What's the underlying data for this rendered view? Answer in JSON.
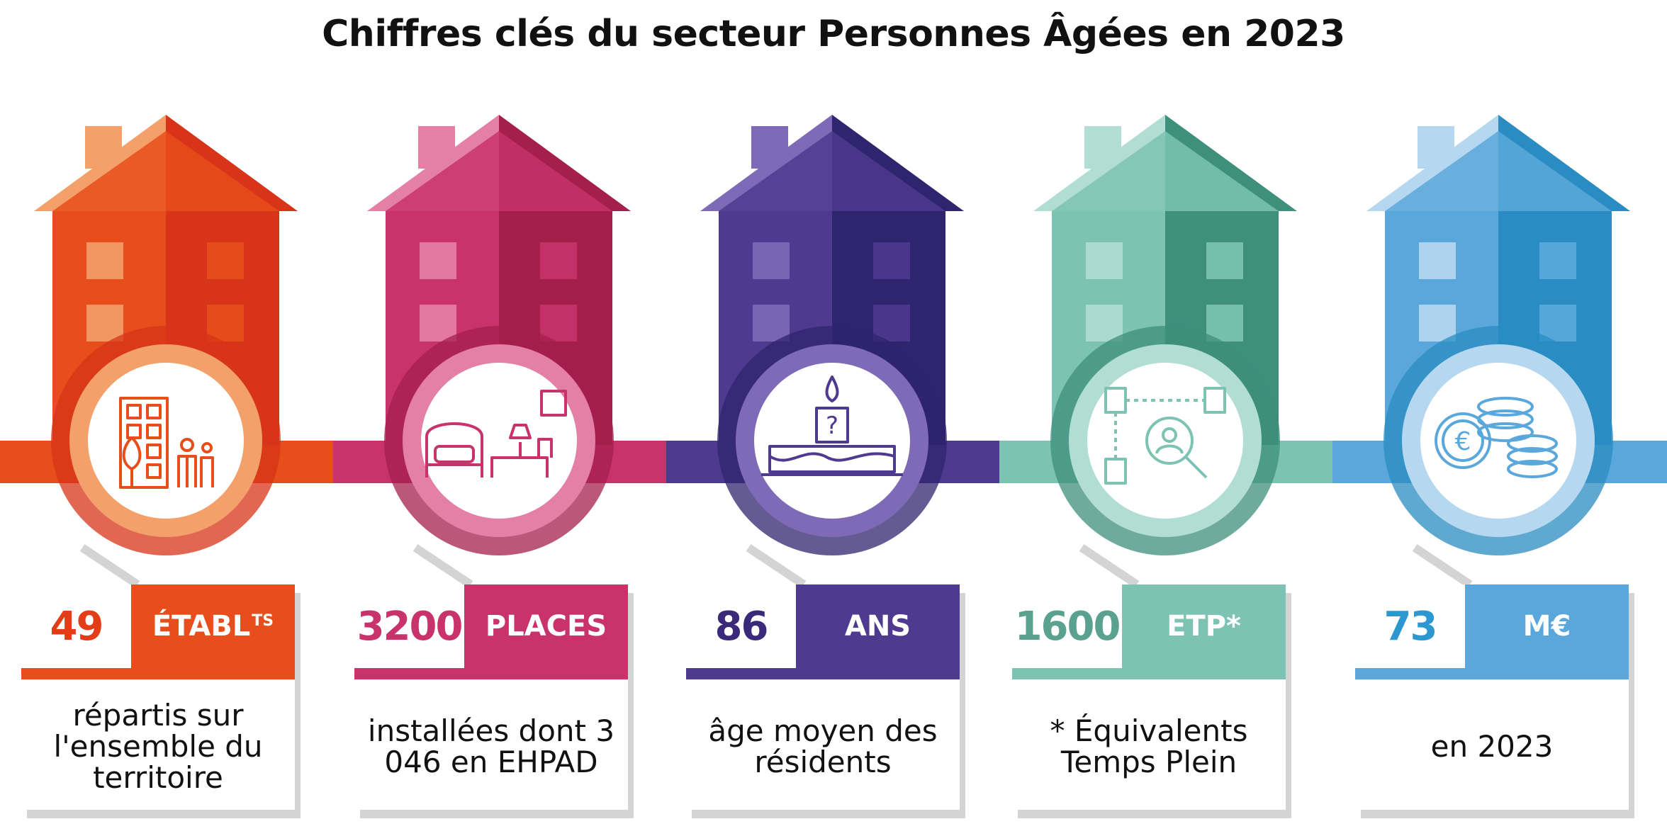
{
  "title": "Chiffres clés du secteur Personnes Âgées en 2023",
  "cards": [
    {
      "number": "49",
      "unit": "ÉTABL",
      "unit_sup": "TS",
      "description": "répartis sur l'ensemble du territoire",
      "icon": "building-people-icon",
      "color": "#e84e1b",
      "light": "#f4a06a",
      "dark": "#d7341a"
    },
    {
      "number": "3200",
      "unit": "PLACES",
      "description": "installées dont 3 046 en EHPAD",
      "icon": "bedroom-icon",
      "color": "#c8336c",
      "light": "#e47fa6",
      "dark": "#a41f4c"
    },
    {
      "number": "86",
      "unit": "ANS",
      "description": "âge moyen des résidents",
      "icon": "birthday-cake-icon",
      "color": "#4e3a8f",
      "light": "#7f6ab8",
      "dark": "#2f246e"
    },
    {
      "number": "1600",
      "unit": "ETP*",
      "description": "* Équivalents Temps Plein",
      "icon": "staff-search-icon",
      "color": "#7cc3b3",
      "light": "#b1ddd3",
      "dark": "#3e8f7c"
    },
    {
      "number": "73",
      "unit": "M€",
      "description": "en 2023",
      "icon": "euro-coins-icon",
      "color": "#5aa8db",
      "light": "#b6d7f0",
      "dark": "#2a8cc2"
    }
  ]
}
